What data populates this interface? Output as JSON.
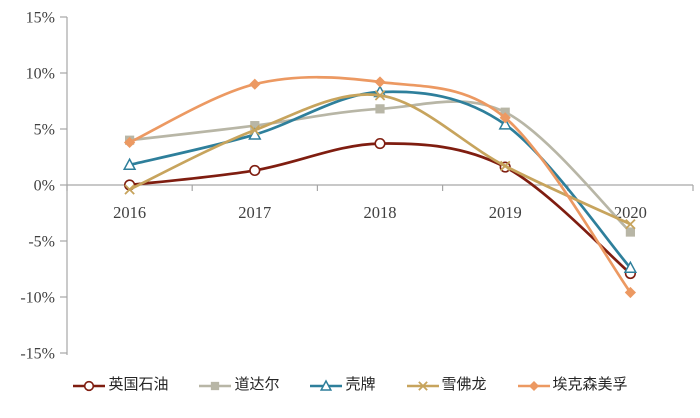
{
  "chart_data": {
    "type": "line",
    "title": "",
    "categories": [
      "2016",
      "2017",
      "2018",
      "2019",
      "2020"
    ],
    "series": [
      {
        "name": "英国石油",
        "color": "#7F1D10",
        "marker": "circle-open",
        "values": [
          0.0,
          1.3,
          3.7,
          1.6,
          -7.9
        ]
      },
      {
        "name": "道达尔",
        "color": "#B8B6A6",
        "marker": "square-filled",
        "values": [
          4.0,
          5.3,
          6.8,
          6.5,
          -4.2
        ]
      },
      {
        "name": "壳牌",
        "color": "#2E7F9B",
        "marker": "triangle-open",
        "values": [
          1.8,
          4.5,
          8.3,
          5.4,
          -7.4
        ]
      },
      {
        "name": "雪佛龙",
        "color": "#C7A45D",
        "marker": "x",
        "values": [
          -0.4,
          4.9,
          8.0,
          1.7,
          -3.5
        ]
      },
      {
        "name": "埃克森美孚",
        "color": "#EC9962",
        "marker": "diamond-filled",
        "values": [
          3.8,
          9.0,
          9.2,
          6.0,
          -9.6
        ]
      }
    ],
    "y_axis": {
      "min": -15,
      "max": 15,
      "step": 5,
      "tick_labels": [
        "15%",
        "10%",
        "5%",
        "0%",
        "-5%",
        "-10%",
        "-15%"
      ]
    },
    "x_axis": {
      "labels": [
        "2016",
        "2017",
        "2018",
        "2019",
        "2020"
      ],
      "position": "below-zero-line"
    },
    "grid": false,
    "smooth_lines": true,
    "legend_position": "bottom",
    "colors": {
      "axis": "#A6A6A6",
      "axis_label": "#404040",
      "background": "#FFFFFF"
    },
    "ylim": [
      -15,
      15
    ]
  }
}
